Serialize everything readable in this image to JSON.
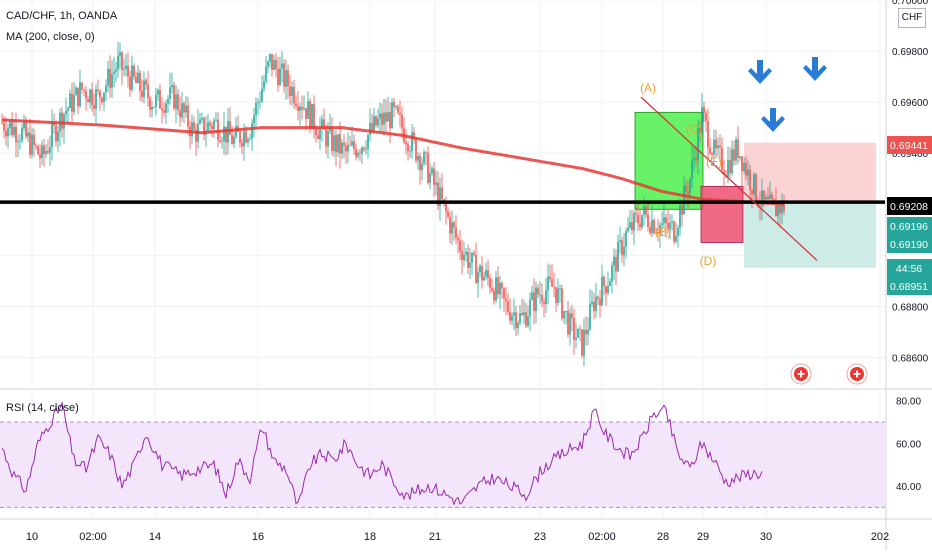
{
  "header": {
    "symbol_line": "CAD/CHF, 1h, OANDA",
    "ma_label": "MA (200, close, 0)",
    "rsi_label": "RSI (14, close)",
    "currency": "CHF"
  },
  "colors": {
    "up": "#26a69a",
    "down": "#ef5350",
    "ma": "#e53935",
    "trend": "#d32f2f",
    "rsi": "#9c27b0",
    "rsi_band": "#f3e6fb",
    "level": "#000000",
    "green_box": "#4cf04c",
    "red_box": "#f05a78",
    "wave_label": "#f0a030",
    "arrow": "#2a7bd6",
    "sl_zone": "#fbd3d5",
    "tp_zone": "#cdebe7"
  },
  "chart_data": [
    {
      "type": "candlestick",
      "name": "",
      "ylim": [
        0.6848,
        0.7
      ],
      "y_ticks": [
        "0.70000",
        "0.69800",
        "0.69600",
        "0.69400",
        "0.69200",
        "0.68800",
        "0.68600"
      ],
      "x_ticks": [
        "10",
        "02:00",
        "14",
        "16",
        "18",
        "21",
        "23",
        "02:00",
        "28",
        "29",
        "30",
        "202"
      ],
      "anchors": [
        [
          0,
          0.6952
        ],
        [
          10,
          0.6948
        ],
        [
          20,
          0.6938
        ],
        [
          30,
          0.6955
        ],
        [
          40,
          0.6965
        ],
        [
          48,
          0.6962
        ],
        [
          58,
          0.6975
        ],
        [
          66,
          0.6968
        ],
        [
          76,
          0.696
        ],
        [
          86,
          0.6962
        ],
        [
          96,
          0.6948
        ],
        [
          106,
          0.6952
        ],
        [
          116,
          0.6945
        ],
        [
          124,
          0.695
        ],
        [
          134,
          0.6976
        ],
        [
          142,
          0.6968
        ],
        [
          150,
          0.696
        ],
        [
          158,
          0.695
        ],
        [
          164,
          0.6945
        ],
        [
          172,
          0.694
        ],
        [
          180,
          0.6944
        ],
        [
          188,
          0.6952
        ],
        [
          196,
          0.6955
        ],
        [
          204,
          0.6945
        ],
        [
          212,
          0.6935
        ],
        [
          220,
          0.692
        ],
        [
          228,
          0.6905
        ],
        [
          236,
          0.6895
        ],
        [
          244,
          0.689
        ],
        [
          252,
          0.688
        ],
        [
          260,
          0.6875
        ],
        [
          268,
          0.6885
        ],
        [
          276,
          0.6888
        ],
        [
          284,
          0.6872
        ],
        [
          290,
          0.6865
        ],
        [
          296,
          0.6882
        ],
        [
          304,
          0.6892
        ],
        [
          312,
          0.6908
        ],
        [
          320,
          0.6916
        ],
        [
          328,
          0.6912
        ],
        [
          336,
          0.691
        ],
        [
          344,
          0.693
        ],
        [
          350,
          0.6955
        ],
        [
          356,
          0.694
        ],
        [
          362,
          0.6935
        ],
        [
          368,
          0.6942
        ],
        [
          374,
          0.693
        ],
        [
          380,
          0.692
        ],
        [
          386,
          0.6918
        ],
        [
          392,
          0.692
        ]
      ],
      "ma_anchors": [
        [
          0,
          0.6953
        ],
        [
          50,
          0.6951
        ],
        [
          100,
          0.6948
        ],
        [
          130,
          0.695
        ],
        [
          170,
          0.695
        ],
        [
          200,
          0.6947
        ],
        [
          230,
          0.6942
        ],
        [
          260,
          0.6938
        ],
        [
          290,
          0.6934
        ],
        [
          310,
          0.693
        ],
        [
          330,
          0.6925
        ],
        [
          350,
          0.6922
        ],
        [
          370,
          0.6921
        ],
        [
          392,
          0.692
        ]
      ],
      "horizontal_level": 0.69208,
      "price_labels": [
        {
          "text": "0.69441",
          "value": 0.69441,
          "color": "#ef5350"
        },
        {
          "text": "0.69208",
          "value": 0.69208,
          "color": "#000000"
        },
        {
          "text": "0.69196",
          "value": 0.69196,
          "color": "#26a69a"
        },
        {
          "text": "0.69190",
          "value": 0.6919,
          "color": "#26a69a"
        },
        {
          "text": "44:56",
          "value": 0.6906,
          "color": "#26a69a"
        },
        {
          "text": "0.68951",
          "value": 0.68951,
          "color": "#26a69a"
        }
      ],
      "wave_labels": [
        "(A)",
        "(B)",
        "(C)",
        "(E)",
        "(D)"
      ]
    },
    {
      "type": "line",
      "name": "",
      "ylim": [
        25,
        85
      ],
      "y_ticks": [
        "80.00",
        "60.00",
        "40.00"
      ],
      "overbought": 70,
      "oversold": 30,
      "anchors": [
        [
          0,
          58
        ],
        [
          6,
          45
        ],
        [
          12,
          38
        ],
        [
          18,
          60
        ],
        [
          24,
          70
        ],
        [
          30,
          78
        ],
        [
          36,
          52
        ],
        [
          42,
          48
        ],
        [
          48,
          62
        ],
        [
          54,
          55
        ],
        [
          60,
          40
        ],
        [
          66,
          50
        ],
        [
          72,
          65
        ],
        [
          80,
          50
        ],
        [
          90,
          45
        ],
        [
          98,
          48
        ],
        [
          106,
          50
        ],
        [
          112,
          36
        ],
        [
          118,
          52
        ],
        [
          124,
          44
        ],
        [
          130,
          68
        ],
        [
          136,
          52
        ],
        [
          142,
          48
        ],
        [
          148,
          30
        ],
        [
          154,
          50
        ],
        [
          160,
          55
        ],
        [
          166,
          52
        ],
        [
          172,
          60
        ],
        [
          178,
          50
        ],
        [
          184,
          45
        ],
        [
          190,
          50
        ],
        [
          196,
          42
        ],
        [
          202,
          35
        ],
        [
          208,
          38
        ],
        [
          214,
          40
        ],
        [
          222,
          36
        ],
        [
          230,
          32
        ],
        [
          238,
          40
        ],
        [
          246,
          44
        ],
        [
          254,
          40
        ],
        [
          262,
          36
        ],
        [
          270,
          48
        ],
        [
          280,
          55
        ],
        [
          290,
          60
        ],
        [
          296,
          75
        ],
        [
          302,
          64
        ],
        [
          308,
          58
        ],
        [
          314,
          54
        ],
        [
          320,
          62
        ],
        [
          326,
          74
        ],
        [
          332,
          75
        ],
        [
          338,
          55
        ],
        [
          344,
          48
        ],
        [
          350,
          60
        ],
        [
          356,
          52
        ],
        [
          362,
          42
        ],
        [
          368,
          44
        ],
        [
          374,
          46
        ],
        [
          380,
          46
        ]
      ]
    }
  ]
}
